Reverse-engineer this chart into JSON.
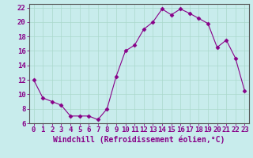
{
  "x": [
    0,
    1,
    2,
    3,
    4,
    5,
    6,
    7,
    8,
    9,
    10,
    11,
    12,
    13,
    14,
    15,
    16,
    17,
    18,
    19,
    20,
    21,
    22,
    23
  ],
  "y": [
    12.0,
    9.5,
    9.0,
    8.5,
    7.0,
    7.0,
    7.0,
    6.5,
    8.0,
    12.5,
    16.0,
    16.8,
    19.0,
    20.0,
    21.8,
    21.0,
    21.8,
    21.2,
    20.5,
    19.8,
    16.5,
    17.5,
    15.0,
    10.5
  ],
  "xlim": [
    -0.5,
    23.5
  ],
  "ylim": [
    6,
    22.5
  ],
  "yticks": [
    6,
    8,
    10,
    12,
    14,
    16,
    18,
    20,
    22
  ],
  "xticks": [
    0,
    1,
    2,
    3,
    4,
    5,
    6,
    7,
    8,
    9,
    10,
    11,
    12,
    13,
    14,
    15,
    16,
    17,
    18,
    19,
    20,
    21,
    22,
    23
  ],
  "xlabel": "Windchill (Refroidissement éolien,°C)",
  "line_color": "#880088",
  "marker": "D",
  "marker_size": 2.5,
  "bg_color": "#c8ecec",
  "grid_color": "#aad8cc",
  "axis_color": "#555555",
  "tick_label_fontsize": 6.5,
  "xlabel_fontsize": 7.0
}
